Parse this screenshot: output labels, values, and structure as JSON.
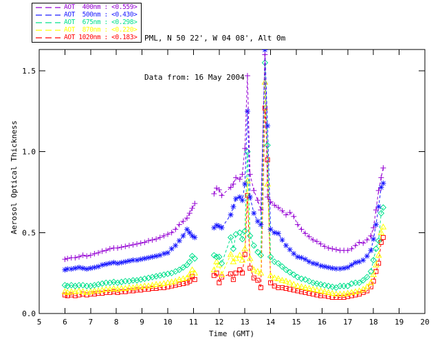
{
  "header": {
    "line1": "PML, N 50 22', W 04 08', Alt 0m",
    "line2": "Data from: 16 May 2004"
  },
  "legend": {
    "items": [
      {
        "label": "AOT  400nm : <0.559>",
        "color": "#9400D3"
      },
      {
        "label": "AOT  500nm : <0.430>",
        "color": "#1A1AFF"
      },
      {
        "label": "AOT  675nm : <0.298>",
        "color": "#00E08C"
      },
      {
        "label": "AOT  870nm : <0.220>",
        "color": "#FFFF00"
      },
      {
        "label": "AOT 1020nm : <0.183>",
        "color": "#FF0000"
      }
    ]
  },
  "chart_data": {
    "type": "line",
    "xlabel": "Time (GMT)",
    "ylabel": "Aerosol Optical Thickness",
    "xlim": [
      5,
      20
    ],
    "ylim": [
      0,
      1.632
    ],
    "xticks": [
      5,
      6,
      7,
      8,
      9,
      10,
      11,
      12,
      13,
      14,
      15,
      16,
      17,
      18,
      19,
      20
    ],
    "yticks": [
      0.0,
      0.5,
      1.0,
      1.5
    ],
    "grid": false,
    "legend_position": "outside-top-left",
    "morning_x": [
      6.0,
      6.1,
      6.25,
      6.4,
      6.55,
      6.7,
      6.85,
      7.0,
      7.15,
      7.3,
      7.45,
      7.6,
      7.75,
      7.9,
      8.05,
      8.2,
      8.35,
      8.5,
      8.65,
      8.8,
      8.95,
      9.1,
      9.25,
      9.4,
      9.55,
      9.7,
      9.85,
      10.0,
      10.15,
      10.3,
      10.45,
      10.6,
      10.75,
      10.85,
      10.95,
      11.05
    ],
    "afternoon_x": [
      11.8,
      11.9,
      12.0,
      12.1,
      12.45,
      12.55,
      12.65,
      12.8,
      12.9,
      13.0,
      13.1,
      13.2,
      13.35,
      13.5,
      13.62,
      13.78,
      13.88,
      14.0,
      14.15,
      14.3,
      14.45,
      14.6,
      14.75,
      14.9,
      15.05,
      15.2,
      15.35,
      15.5,
      15.65,
      15.8,
      15.95,
      16.1,
      16.25,
      16.4,
      16.55,
      16.7,
      16.85,
      17.0,
      17.15,
      17.3,
      17.45,
      17.6,
      17.75,
      17.9,
      18.0,
      18.1,
      18.2,
      18.3,
      18.38
    ],
    "series": [
      {
        "name": "AOT 400nm",
        "wavelength_nm": 400,
        "mean_aot": 0.559,
        "color": "#9400D3",
        "marker": "plus",
        "morning_y": [
          0.335,
          0.34,
          0.345,
          0.345,
          0.35,
          0.36,
          0.355,
          0.36,
          0.37,
          0.375,
          0.385,
          0.39,
          0.4,
          0.405,
          0.405,
          0.41,
          0.415,
          0.42,
          0.425,
          0.43,
          0.435,
          0.44,
          0.45,
          0.455,
          0.46,
          0.47,
          0.48,
          0.49,
          0.5,
          0.52,
          0.55,
          0.57,
          0.59,
          0.62,
          0.65,
          0.68
        ],
        "afternoon_y": [
          0.74,
          0.775,
          0.765,
          0.73,
          0.78,
          0.8,
          0.84,
          0.83,
          0.86,
          1.02,
          1.47,
          0.86,
          0.76,
          0.7,
          0.64,
          1.6,
          0.72,
          0.69,
          0.67,
          0.655,
          0.635,
          0.61,
          0.625,
          0.6,
          0.55,
          0.52,
          0.495,
          0.475,
          0.455,
          0.445,
          0.43,
          0.415,
          0.405,
          0.4,
          0.395,
          0.39,
          0.39,
          0.39,
          0.4,
          0.42,
          0.44,
          0.435,
          0.455,
          0.48,
          0.53,
          0.64,
          0.76,
          0.84,
          0.9
        ]
      },
      {
        "name": "AOT 500nm",
        "wavelength_nm": 500,
        "mean_aot": 0.43,
        "color": "#1A1AFF",
        "marker": "asterisk",
        "morning_y": [
          0.27,
          0.275,
          0.275,
          0.28,
          0.285,
          0.28,
          0.275,
          0.28,
          0.285,
          0.29,
          0.3,
          0.305,
          0.31,
          0.315,
          0.31,
          0.315,
          0.32,
          0.325,
          0.33,
          0.33,
          0.335,
          0.34,
          0.345,
          0.35,
          0.355,
          0.36,
          0.37,
          0.375,
          0.4,
          0.42,
          0.45,
          0.48,
          0.52,
          0.5,
          0.48,
          0.47
        ],
        "afternoon_y": [
          0.53,
          0.545,
          0.54,
          0.53,
          0.61,
          0.66,
          0.71,
          0.72,
          0.7,
          0.8,
          1.25,
          0.72,
          0.62,
          0.57,
          0.55,
          1.63,
          1.16,
          0.52,
          0.5,
          0.495,
          0.455,
          0.42,
          0.395,
          0.37,
          0.35,
          0.345,
          0.335,
          0.32,
          0.31,
          0.305,
          0.295,
          0.29,
          0.285,
          0.28,
          0.277,
          0.277,
          0.28,
          0.285,
          0.3,
          0.315,
          0.32,
          0.33,
          0.355,
          0.39,
          0.46,
          0.55,
          0.66,
          0.78,
          0.805
        ]
      },
      {
        "name": "AOT 675nm",
        "wavelength_nm": 675,
        "mean_aot": 0.298,
        "color": "#00E08C",
        "marker": "diamond",
        "morning_y": [
          0.175,
          0.17,
          0.175,
          0.17,
          0.175,
          0.175,
          0.17,
          0.17,
          0.175,
          0.18,
          0.185,
          0.19,
          0.19,
          0.195,
          0.19,
          0.195,
          0.2,
          0.2,
          0.205,
          0.205,
          0.21,
          0.215,
          0.22,
          0.225,
          0.23,
          0.235,
          0.24,
          0.245,
          0.25,
          0.26,
          0.27,
          0.285,
          0.3,
          0.32,
          0.355,
          0.34
        ],
        "afternoon_y": [
          0.36,
          0.35,
          0.35,
          0.31,
          0.47,
          0.4,
          0.49,
          0.5,
          0.46,
          0.51,
          1.0,
          0.48,
          0.42,
          0.38,
          0.36,
          1.55,
          1.04,
          0.35,
          0.32,
          0.31,
          0.29,
          0.27,
          0.255,
          0.24,
          0.225,
          0.215,
          0.21,
          0.2,
          0.19,
          0.185,
          0.18,
          0.175,
          0.17,
          0.165,
          0.16,
          0.17,
          0.17,
          0.17,
          0.185,
          0.19,
          0.19,
          0.205,
          0.225,
          0.26,
          0.33,
          0.4,
          0.45,
          0.62,
          0.655
        ]
      },
      {
        "name": "AOT 870nm",
        "wavelength_nm": 870,
        "mean_aot": 0.22,
        "color": "#FFFF00",
        "marker": "triangle",
        "morning_y": [
          0.135,
          0.13,
          0.135,
          0.135,
          0.14,
          0.135,
          0.13,
          0.135,
          0.14,
          0.14,
          0.145,
          0.15,
          0.15,
          0.155,
          0.15,
          0.155,
          0.155,
          0.16,
          0.16,
          0.165,
          0.165,
          0.17,
          0.17,
          0.175,
          0.18,
          0.18,
          0.185,
          0.19,
          0.195,
          0.2,
          0.21,
          0.215,
          0.22,
          0.24,
          0.27,
          0.25
        ],
        "afternoon_y": [
          0.27,
          0.32,
          0.3,
          0.24,
          0.365,
          0.32,
          0.34,
          0.36,
          0.33,
          0.4,
          0.82,
          0.34,
          0.27,
          0.26,
          0.25,
          1.43,
          0.8,
          0.235,
          0.22,
          0.215,
          0.205,
          0.2,
          0.19,
          0.18,
          0.17,
          0.165,
          0.16,
          0.155,
          0.15,
          0.145,
          0.14,
          0.135,
          0.13,
          0.125,
          0.12,
          0.12,
          0.12,
          0.125,
          0.13,
          0.135,
          0.14,
          0.15,
          0.165,
          0.19,
          0.24,
          0.3,
          0.36,
          0.5,
          0.535
        ]
      },
      {
        "name": "AOT 1020nm",
        "wavelength_nm": 1020,
        "mean_aot": 0.183,
        "color": "#FF0000",
        "marker": "square",
        "morning_y": [
          0.115,
          0.11,
          0.115,
          0.11,
          0.115,
          0.12,
          0.115,
          0.12,
          0.12,
          0.125,
          0.125,
          0.13,
          0.13,
          0.135,
          0.13,
          0.135,
          0.135,
          0.14,
          0.14,
          0.145,
          0.145,
          0.15,
          0.15,
          0.155,
          0.155,
          0.16,
          0.16,
          0.165,
          0.17,
          0.175,
          0.18,
          0.185,
          0.19,
          0.2,
          0.23,
          0.21
        ],
        "afternoon_y": [
          0.235,
          0.25,
          0.19,
          0.225,
          0.245,
          0.21,
          0.25,
          0.27,
          0.25,
          0.365,
          0.73,
          0.28,
          0.22,
          0.205,
          0.16,
          1.27,
          0.95,
          0.19,
          0.17,
          0.16,
          0.16,
          0.155,
          0.15,
          0.145,
          0.14,
          0.135,
          0.13,
          0.125,
          0.12,
          0.115,
          0.11,
          0.11,
          0.105,
          0.1,
          0.1,
          0.1,
          0.1,
          0.105,
          0.11,
          0.115,
          0.12,
          0.13,
          0.14,
          0.165,
          0.2,
          0.26,
          0.31,
          0.44,
          0.47
        ]
      }
    ]
  }
}
